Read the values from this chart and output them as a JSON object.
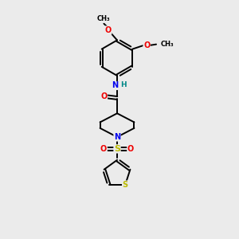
{
  "background_color": "#ebebeb",
  "atom_colors": {
    "C": "#000000",
    "N": "#0000ee",
    "O": "#ee0000",
    "S": "#bbbb00",
    "H": "#008888"
  },
  "figsize": [
    3.0,
    3.0
  ],
  "dpi": 100,
  "lw": 1.4
}
